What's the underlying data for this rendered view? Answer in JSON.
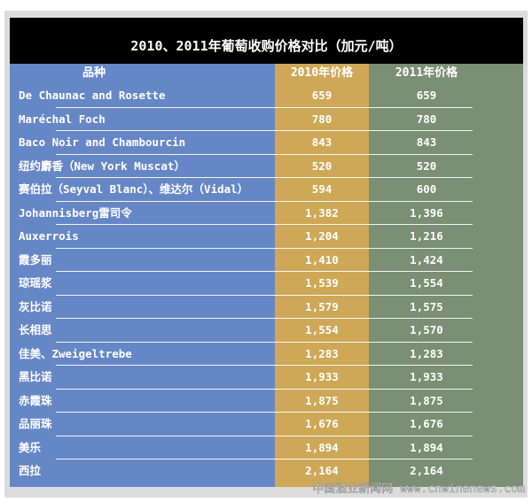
{
  "chart_data": {
    "type": "table",
    "title": "2010、2011年葡萄收购价格对比（加元/吨）",
    "columns": [
      "品种",
      "2010年价格",
      "2011年价格"
    ],
    "rows": [
      [
        "De Chaunac and Rosette",
        "659",
        "659"
      ],
      [
        "Maréchal Foch",
        "780",
        "780"
      ],
      [
        "Baco Noir and Chambourcin",
        "843",
        "843"
      ],
      [
        "纽约麝香（New York Muscat）",
        "520",
        "520"
      ],
      [
        "赛伯拉（Seyval Blanc）、维达尔（Vidal）",
        "594",
        "600"
      ],
      [
        "Johannisberg雷司令",
        "1,382",
        "1,396"
      ],
      [
        "Auxerrois",
        "1,204",
        "1,216"
      ],
      [
        "霞多丽",
        "1,410",
        "1,424"
      ],
      [
        "琼瑶浆",
        "1,539",
        "1,554"
      ],
      [
        "灰比诺",
        "1,579",
        "1,575"
      ],
      [
        "长相思",
        "1,554",
        "1,570"
      ],
      [
        "佳美、Zweigeltrebe",
        "1,283",
        "1,283"
      ],
      [
        "黑比诺",
        "1,933",
        "1,933"
      ],
      [
        "赤霞珠",
        "1,875",
        "1,875"
      ],
      [
        "品丽珠",
        "1,676",
        "1,676"
      ],
      [
        "美乐",
        "1,894",
        "1,894"
      ],
      [
        "西拉",
        "2,164",
        "2,164"
      ]
    ],
    "colors": {
      "variety_column": "#6687c6",
      "col_2010": "#cea857",
      "col_2011": "#7a8f73",
      "title_bg": "#000000"
    }
  },
  "watermark": "中国酒业新闻网 www.cnwinenews.com"
}
